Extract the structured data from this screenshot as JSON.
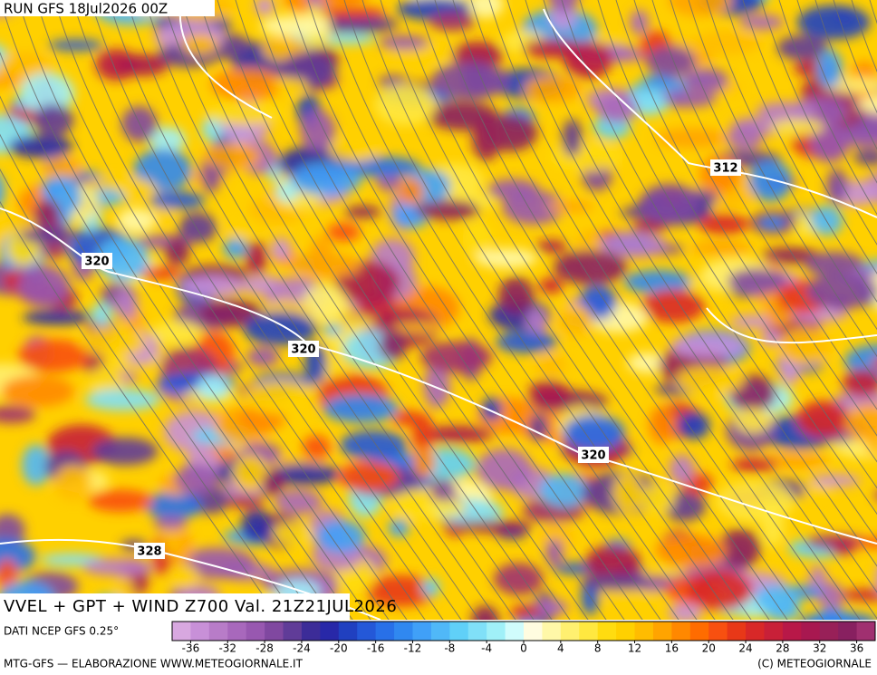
{
  "header": {
    "run": "RUN GFS 18Jul2026 00Z"
  },
  "map": {
    "contour_labels": [
      "312",
      "320",
      "320",
      "320",
      "328"
    ]
  },
  "footer": {
    "title": "VVEL + GPT + WIND Z700 Val. 21Z21JUL2026",
    "source": "DATI NCEP GFS 0.25°",
    "credit_left": "MTG-GFS — ELABORAZIONE WWW.METEOGIORNALE.IT",
    "credit_right": "(C) METEOGIORNALE"
  },
  "colorbar": {
    "range": [
      -38,
      38
    ],
    "ticks": [
      -36,
      -32,
      -28,
      -24,
      -20,
      -16,
      -12,
      -8,
      -4,
      0,
      4,
      8,
      12,
      16,
      20,
      24,
      28,
      32,
      36
    ],
    "colors": [
      "#d8a8e0",
      "#c890d8",
      "#b87cc8",
      "#a868bc",
      "#9858b0",
      "#8048a0",
      "#603c98",
      "#3c2c98",
      "#2828a8",
      "#2040c0",
      "#2458d8",
      "#2870e8",
      "#3088f0",
      "#40a0f8",
      "#50b8f8",
      "#60d0f8",
      "#80e0f8",
      "#a0f0f8",
      "#d0fcfc",
      "#fffce0",
      "#fff8a8",
      "#fff070",
      "#ffe840",
      "#ffdc10",
      "#ffd000",
      "#ffbc00",
      "#ffa400",
      "#ff8800",
      "#ff6c00",
      "#f85010",
      "#e83818",
      "#d82828",
      "#c82038",
      "#b81848",
      "#a81850",
      "#982058",
      "#882060",
      "#a03070"
    ]
  }
}
